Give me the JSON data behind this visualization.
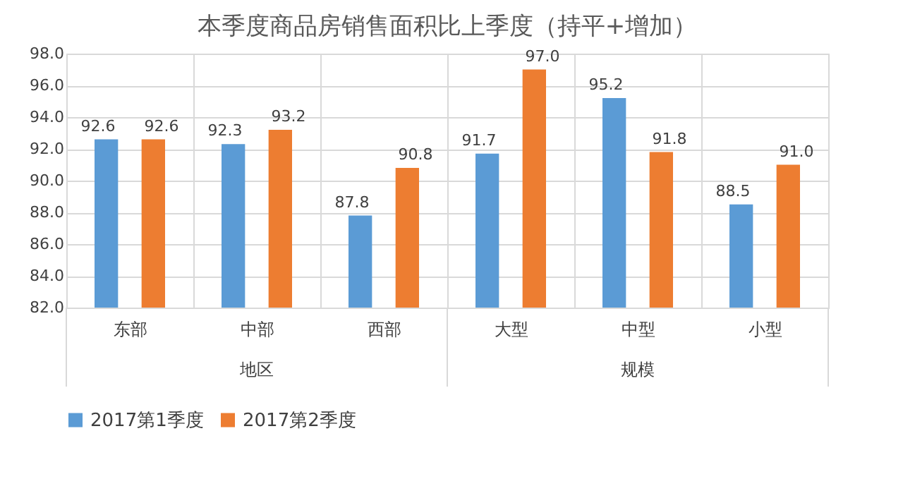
{
  "chart_data": {
    "type": "bar",
    "title": "本季度商品房销售面积比上季度（持平+增加）",
    "categories": [
      "东部",
      "中部",
      "西部",
      "大型",
      "中型",
      "小型"
    ],
    "series": [
      {
        "name": "2017第1季度",
        "color": "#5b9bd5",
        "values": [
          92.6,
          92.3,
          87.8,
          91.7,
          95.2,
          88.5
        ],
        "value_labels": [
          "92.6",
          "92.3",
          "87.8",
          "91.7",
          "95.2",
          "88.5"
        ]
      },
      {
        "name": "2017第2季度",
        "color": "#ed7d31",
        "values": [
          92.6,
          93.2,
          90.8,
          97.0,
          91.8,
          91.0
        ],
        "value_labels": [
          "92.6",
          "93.2",
          "90.8",
          "97.0",
          "91.8",
          "91.0"
        ]
      }
    ],
    "ylim": [
      82,
      98
    ],
    "yticks": [
      {
        "value": 82,
        "label": "82.0"
      },
      {
        "value": 84,
        "label": "84.0"
      },
      {
        "value": 86,
        "label": "86.0"
      },
      {
        "value": 88,
        "label": "88.0"
      },
      {
        "value": 90,
        "label": "90.0"
      },
      {
        "value": 92,
        "label": "92.0"
      },
      {
        "value": 94,
        "label": "94.0"
      },
      {
        "value": 96,
        "label": "96.0"
      },
      {
        "value": 98,
        "label": "98.0"
      }
    ],
    "annotations": [
      "地区",
      "规模"
    ],
    "grid": true,
    "legend": "bottom"
  }
}
